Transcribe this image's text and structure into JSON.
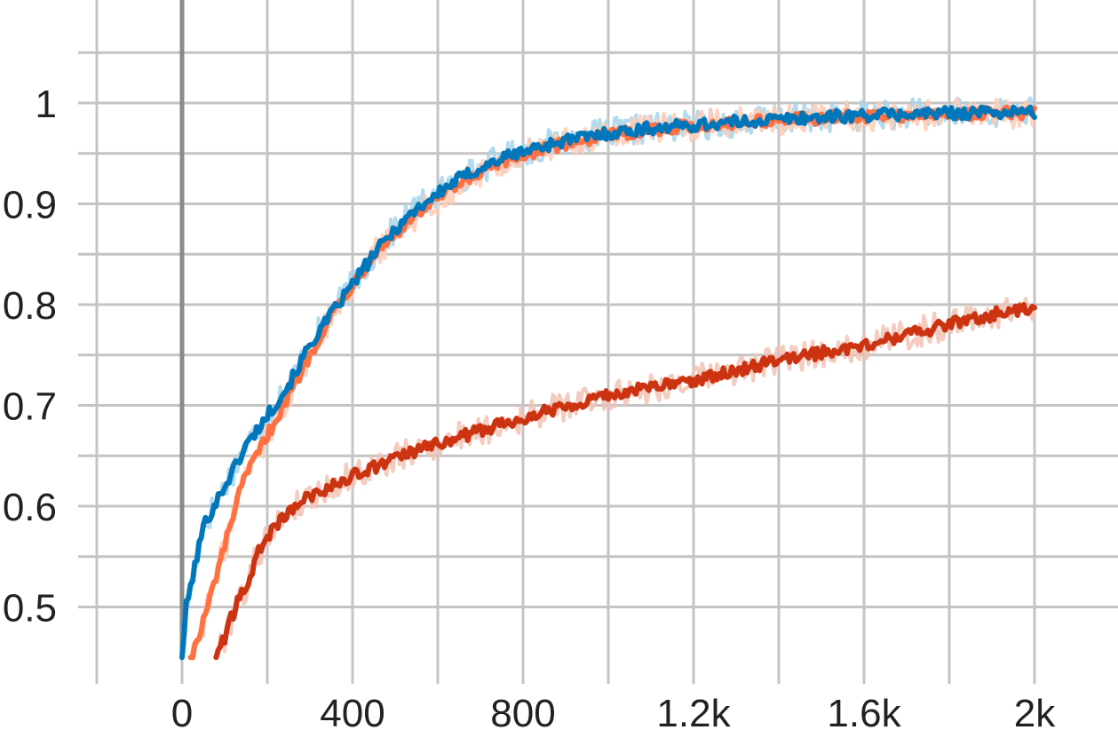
{
  "chart_data": {
    "type": "line",
    "title": "",
    "xlabel": "",
    "ylabel": "",
    "xlim": [
      -200,
      2100
    ],
    "ylim": [
      0.45,
      1.06
    ],
    "grid": true,
    "legend": "none",
    "x_ticks": [
      {
        "value": 0,
        "label": "0"
      },
      {
        "value": 400,
        "label": "400"
      },
      {
        "value": 800,
        "label": "800"
      },
      {
        "value": 1200,
        "label": "1.2k"
      },
      {
        "value": 1600,
        "label": "1.6k"
      },
      {
        "value": 2000,
        "label": "2k"
      }
    ],
    "y_ticks": [
      {
        "value": 0.5,
        "label": "0.5"
      },
      {
        "value": 0.6,
        "label": "0.6"
      },
      {
        "value": 0.7,
        "label": "0.7"
      },
      {
        "value": 0.8,
        "label": "0.8"
      },
      {
        "value": 0.9,
        "label": "0.9"
      },
      {
        "value": 1,
        "label": "1"
      }
    ],
    "series": [
      {
        "color": "#0077bb",
        "raw_color": "#a6d3ea",
        "x": [
          0,
          10,
          25,
          50,
          75,
          100,
          150,
          200,
          250,
          300,
          350,
          400,
          450,
          500,
          550,
          600,
          650,
          700,
          750,
          800,
          900,
          1000,
          1100,
          1200,
          1300,
          1400,
          1500,
          1600,
          1700,
          1800,
          1900,
          2000
        ],
        "values": [
          0.45,
          0.5,
          0.53,
          0.58,
          0.6,
          0.62,
          0.66,
          0.69,
          0.72,
          0.76,
          0.79,
          0.82,
          0.85,
          0.875,
          0.895,
          0.91,
          0.925,
          0.935,
          0.945,
          0.952,
          0.963,
          0.97,
          0.975,
          0.978,
          0.981,
          0.984,
          0.986,
          0.988,
          0.989,
          0.99,
          0.991,
          0.991
        ]
      },
      {
        "color": "#ff7043",
        "raw_color": "#ffcbb5",
        "x": [
          20,
          40,
          60,
          80,
          100,
          125,
          150,
          200,
          250,
          300,
          350,
          400,
          450,
          500,
          550,
          600,
          650,
          700,
          750,
          800,
          900,
          1000,
          1100,
          1200,
          1300,
          1400,
          1500,
          1600,
          1700,
          1800,
          1900,
          2000
        ],
        "values": [
          0.45,
          0.47,
          0.5,
          0.53,
          0.56,
          0.6,
          0.63,
          0.67,
          0.71,
          0.75,
          0.79,
          0.82,
          0.85,
          0.87,
          0.89,
          0.905,
          0.918,
          0.93,
          0.94,
          0.948,
          0.96,
          0.968,
          0.974,
          0.977,
          0.981,
          0.983,
          0.985,
          0.987,
          0.988,
          0.989,
          0.99,
          0.99
        ]
      },
      {
        "color": "#cc3311",
        "raw_color": "#f2c2b4",
        "x": [
          80,
          100,
          125,
          150,
          175,
          200,
          250,
          300,
          400,
          500,
          600,
          700,
          800,
          900,
          1000,
          1100,
          1200,
          1300,
          1400,
          1500,
          1600,
          1700,
          1800,
          1900,
          2000
        ],
        "values": [
          0.45,
          0.47,
          0.5,
          0.52,
          0.55,
          0.57,
          0.595,
          0.61,
          0.63,
          0.647,
          0.662,
          0.675,
          0.688,
          0.7,
          0.71,
          0.718,
          0.725,
          0.735,
          0.745,
          0.752,
          0.76,
          0.77,
          0.78,
          0.79,
          0.798
        ]
      }
    ]
  }
}
